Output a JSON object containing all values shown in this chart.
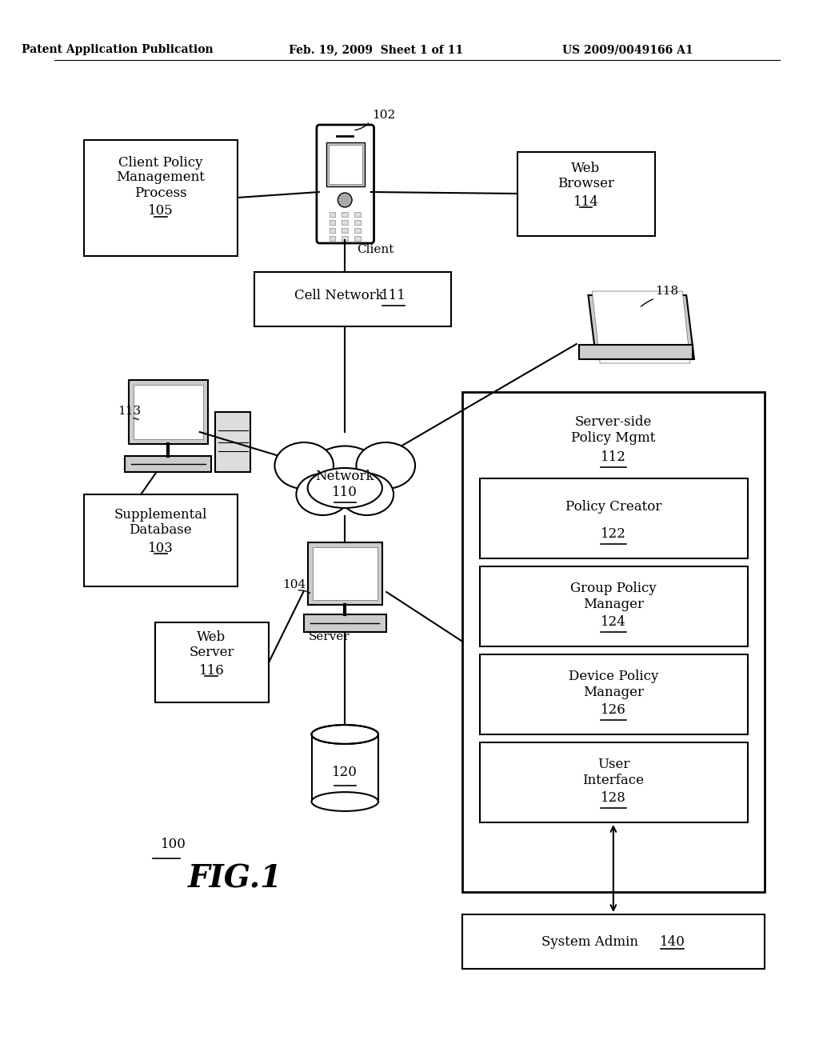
{
  "bg_color": "#ffffff",
  "header_left": "Patent Application Publication",
  "header_mid": "Feb. 19, 2009  Sheet 1 of 11",
  "header_right": "US 2009/0049166 A1",
  "fig_label": "FIG.1",
  "ref_100": "100"
}
